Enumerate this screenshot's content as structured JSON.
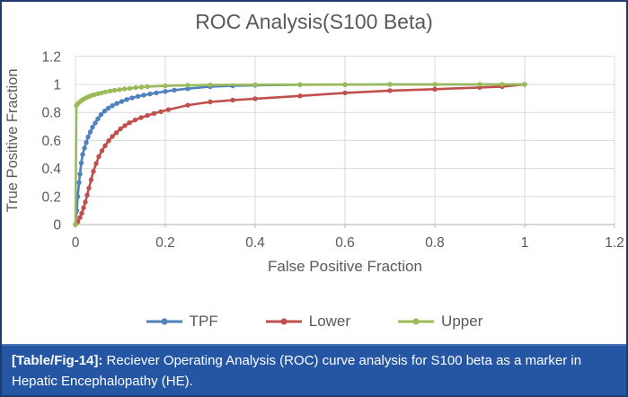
{
  "figure": {
    "caption_label": "[Table/Fig-14]:",
    "caption_text": " Reciever Operating Analysis (ROC) curve analysis for S100 beta as a marker in Hepatic Encephalopathy (HE).",
    "colors": {
      "border": "#1e3c6e",
      "caption_bg": "#2456a4",
      "caption_edge": "#4a73b8",
      "text_gray": "#595959",
      "gridline": "#d9d9d9",
      "axis_line": "#bfbfbf"
    }
  },
  "chart_data": {
    "type": "line",
    "title": "ROC Analysis(S100 Beta)",
    "xlabel": "False Positive Fraction",
    "ylabel": "True Positive Fraction",
    "xlim": [
      0,
      1.2
    ],
    "ylim": [
      0,
      1.2
    ],
    "xticks": [
      0,
      0.2,
      0.4,
      0.6,
      0.8,
      1,
      1.2
    ],
    "yticks": [
      0,
      0.2,
      0.4,
      0.6,
      0.8,
      1,
      1.2
    ],
    "xtick_labels": [
      "0",
      "0.2",
      "0.4",
      "0.6",
      "0.8",
      "1",
      "1.2"
    ],
    "ytick_labels": [
      "0",
      "0.2",
      "0.4",
      "0.6",
      "0.8",
      "1",
      "1.2"
    ],
    "grid": true,
    "legend_position": "bottom",
    "marker": "circle",
    "series": [
      {
        "name": "TPF",
        "color": "#4f81bd",
        "points": [
          [
            0,
            0
          ],
          [
            0.003,
            0.1
          ],
          [
            0.005,
            0.2
          ],
          [
            0.008,
            0.3
          ],
          [
            0.01,
            0.36
          ],
          [
            0.013,
            0.44
          ],
          [
            0.016,
            0.5
          ],
          [
            0.02,
            0.545
          ],
          [
            0.024,
            0.585
          ],
          [
            0.028,
            0.625
          ],
          [
            0.033,
            0.66
          ],
          [
            0.038,
            0.695
          ],
          [
            0.044,
            0.725
          ],
          [
            0.05,
            0.755
          ],
          [
            0.057,
            0.785
          ],
          [
            0.065,
            0.81
          ],
          [
            0.073,
            0.83
          ],
          [
            0.082,
            0.848
          ],
          [
            0.092,
            0.864
          ],
          [
            0.103,
            0.878
          ],
          [
            0.114,
            0.892
          ],
          [
            0.126,
            0.904
          ],
          [
            0.139,
            0.915
          ],
          [
            0.152,
            0.924
          ],
          [
            0.166,
            0.932
          ],
          [
            0.18,
            0.94
          ],
          [
            0.2,
            0.95
          ],
          [
            0.22,
            0.959
          ],
          [
            0.25,
            0.97
          ],
          [
            0.3,
            0.984
          ],
          [
            0.35,
            0.99
          ],
          [
            0.4,
            0.994
          ],
          [
            0.5,
            0.998
          ],
          [
            0.6,
            0.999
          ],
          [
            0.7,
            1
          ],
          [
            0.8,
            1
          ],
          [
            0.9,
            1
          ],
          [
            1,
            1
          ]
        ]
      },
      {
        "name": "Lower",
        "color": "#c0504d",
        "points": [
          [
            0,
            0
          ],
          [
            0.005,
            0.02
          ],
          [
            0.01,
            0.05
          ],
          [
            0.014,
            0.08
          ],
          [
            0.018,
            0.12
          ],
          [
            0.022,
            0.16
          ],
          [
            0.026,
            0.21
          ],
          [
            0.03,
            0.26
          ],
          [
            0.035,
            0.32
          ],
          [
            0.04,
            0.38
          ],
          [
            0.046,
            0.435
          ],
          [
            0.052,
            0.485
          ],
          [
            0.059,
            0.527
          ],
          [
            0.066,
            0.563
          ],
          [
            0.074,
            0.598
          ],
          [
            0.082,
            0.628
          ],
          [
            0.091,
            0.655
          ],
          [
            0.1,
            0.683
          ],
          [
            0.11,
            0.706
          ],
          [
            0.12,
            0.726
          ],
          [
            0.133,
            0.746
          ],
          [
            0.146,
            0.763
          ],
          [
            0.16,
            0.778
          ],
          [
            0.175,
            0.793
          ],
          [
            0.19,
            0.806
          ],
          [
            0.207,
            0.82
          ],
          [
            0.25,
            0.852
          ],
          [
            0.3,
            0.875
          ],
          [
            0.35,
            0.888
          ],
          [
            0.4,
            0.898
          ],
          [
            0.5,
            0.918
          ],
          [
            0.6,
            0.94
          ],
          [
            0.7,
            0.956
          ],
          [
            0.8,
            0.966
          ],
          [
            0.9,
            0.978
          ],
          [
            0.95,
            0.984
          ],
          [
            1,
            1
          ]
        ]
      },
      {
        "name": "Upper",
        "color": "#9bbb59",
        "points": [
          [
            0,
            0
          ],
          [
            0.002,
            0.85
          ],
          [
            0.005,
            0.862
          ],
          [
            0.009,
            0.874
          ],
          [
            0.013,
            0.884
          ],
          [
            0.018,
            0.894
          ],
          [
            0.023,
            0.903
          ],
          [
            0.029,
            0.912
          ],
          [
            0.035,
            0.92
          ],
          [
            0.042,
            0.927
          ],
          [
            0.05,
            0.934
          ],
          [
            0.058,
            0.94
          ],
          [
            0.067,
            0.947
          ],
          [
            0.077,
            0.953
          ],
          [
            0.087,
            0.958
          ],
          [
            0.098,
            0.963
          ],
          [
            0.109,
            0.968
          ],
          [
            0.121,
            0.972
          ],
          [
            0.134,
            0.977
          ],
          [
            0.147,
            0.981
          ],
          [
            0.16,
            0.984
          ],
          [
            0.2,
            0.99
          ],
          [
            0.25,
            0.994
          ],
          [
            0.3,
            0.996
          ],
          [
            0.4,
            0.998
          ],
          [
            0.5,
            0.999
          ],
          [
            0.6,
            0.999
          ],
          [
            0.7,
            1
          ],
          [
            0.8,
            1
          ],
          [
            0.9,
            1
          ],
          [
            0.95,
            1
          ],
          [
            1,
            1
          ]
        ]
      }
    ]
  }
}
